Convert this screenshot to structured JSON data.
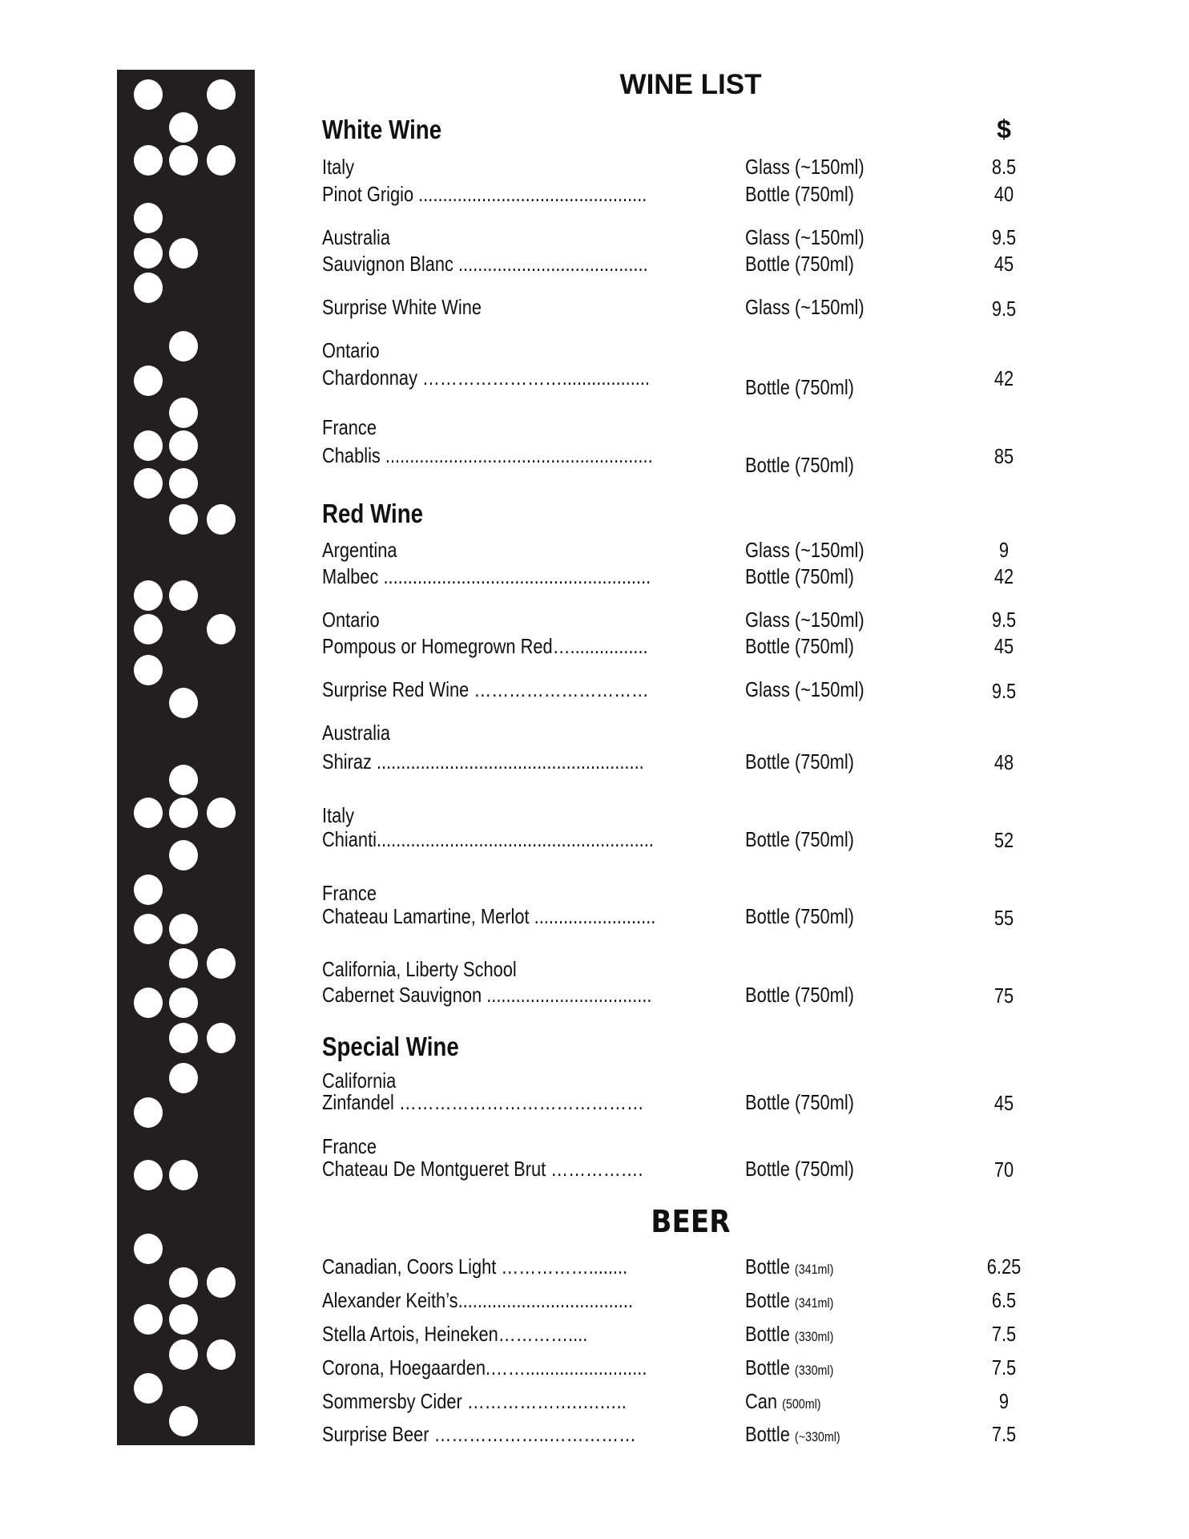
{
  "header": {
    "title": "WINE LIST",
    "price_symbol": "$"
  },
  "sections": [
    {
      "title": "White Wine",
      "items": [
        {
          "origin": "Italy",
          "name": "Pinot Grigio ...............................................",
          "options": [
            {
              "size": "Glass (~150ml)",
              "price": "8.5"
            },
            {
              "size": "Bottle (750ml)",
              "price": "40"
            }
          ]
        },
        {
          "origin": "Australia",
          "name": "Sauvignon Blanc .......................................",
          "options": [
            {
              "size": "Glass (~150ml)",
              "price": "9.5"
            },
            {
              "size": "Bottle (750ml)",
              "price": "45"
            }
          ]
        },
        {
          "origin": "",
          "name": "Surprise White Wine",
          "options": [
            {
              "size": "Glass (~150ml)",
              "price": "9.5"
            }
          ]
        },
        {
          "origin": "Ontario",
          "name": "Chardonnay ……………………..................",
          "options": [
            {
              "size": "Bottle (750ml)",
              "price": "42"
            }
          ]
        },
        {
          "origin": "France",
          "name": "Chablis .......................................................",
          "options": [
            {
              "size": "Bottle (750ml)",
              "price": "85"
            }
          ]
        }
      ]
    },
    {
      "title": "Red Wine",
      "items": [
        {
          "origin": "Argentina",
          "name": "Malbec .......................................................",
          "options": [
            {
              "size": "Glass (~150ml)",
              "price": "9"
            },
            {
              "size": "Bottle (750ml)",
              "price": "42"
            }
          ]
        },
        {
          "origin": "Ontario",
          "name": "Pompous or Homegrown Red…................",
          "options": [
            {
              "size": "Glass (~150ml)",
              "price": "9.5"
            },
            {
              "size": "Bottle (750ml)",
              "price": "45"
            }
          ]
        },
        {
          "origin": "",
          "name": "Surprise Red Wine …………………………",
          "options": [
            {
              "size": "Glass (~150ml)",
              "price": "9.5"
            }
          ]
        },
        {
          "origin": "Australia",
          "name": "Shiraz  .......................................................",
          "options": [
            {
              "size": "Bottle (750ml)",
              "price": "48"
            }
          ]
        },
        {
          "origin": "Italy",
          "name": "Chianti.........................................................",
          "options": [
            {
              "size": "Bottle (750ml)",
              "price": "52"
            }
          ]
        },
        {
          "origin": "France",
          "name": "Chateau Lamartine, Merlot  .........................",
          "options": [
            {
              "size": "Bottle (750ml)",
              "price": "55"
            }
          ]
        },
        {
          "origin": "California, Liberty School",
          "name": "Cabernet Sauvignon ..................................",
          "options": [
            {
              "size": "Bottle (750ml)",
              "price": "75"
            }
          ]
        }
      ]
    },
    {
      "title": "Special Wine",
      "items": [
        {
          "origin": "California",
          "name": "Zinfandel  ……………………………………",
          "options": [
            {
              "size": "Bottle (750ml)",
              "price": "45"
            }
          ]
        },
        {
          "origin": "France",
          "name": "Chateau De Montgueret Brut  …………….",
          "options": [
            {
              "size": "Bottle (750ml)",
              "price": "70"
            }
          ]
        }
      ]
    }
  ],
  "beer": {
    "title": "BEER",
    "items": [
      {
        "name": "Canadian, Coors Light  ……………........",
        "container": "Bottle",
        "volume": "(341ml)",
        "price": "6.25"
      },
      {
        "name": "Alexander Keith’s....................................",
        "container": "Bottle",
        "volume": "(341ml)",
        "price": "6.5"
      },
      {
        "name": "Stella Artois, Heineken…………....",
        "container": "Bottle",
        "volume": "(330ml)",
        "price": "7.5"
      },
      {
        "name": "Corona, Hoegaarden.…….........................",
        "container": "Bottle",
        "volume": "(330ml)",
        "price": "7.5"
      },
      {
        "name": "Sommersby Cider ……………….….…..",
        "container": "Can",
        "volume": "(500ml)",
        "price": "9"
      },
      {
        "name": "Surprise Beer ………………..……………",
        "container": "Bottle",
        "volume": "(~330ml)",
        "price": "7.5"
      }
    ]
  }
}
